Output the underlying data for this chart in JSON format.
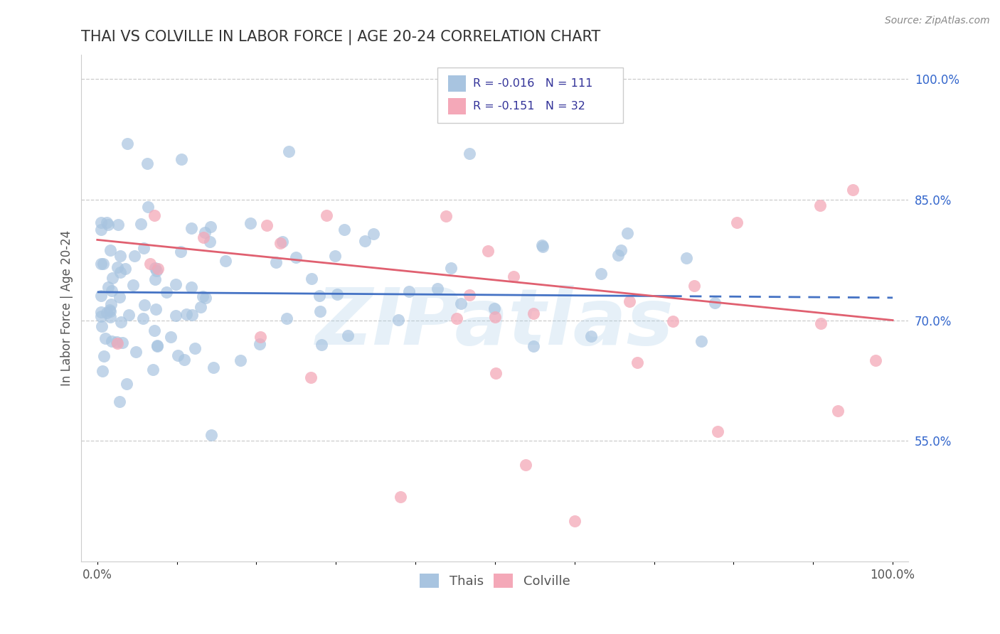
{
  "title": "THAI VS COLVILLE IN LABOR FORCE | AGE 20-24 CORRELATION CHART",
  "source_text": "Source: ZipAtlas.com",
  "ylabel": "In Labor Force | Age 20-24",
  "xlim": [
    -0.02,
    1.02
  ],
  "ylim": [
    0.4,
    1.03
  ],
  "yticks": [
    0.55,
    0.7,
    0.85,
    1.0
  ],
  "ytick_labels": [
    "55.0%",
    "70.0%",
    "85.0%",
    "100.0%"
  ],
  "blue_R": -0.016,
  "blue_N": 111,
  "pink_R": -0.151,
  "pink_N": 32,
  "blue_color": "#a8c4e0",
  "pink_color": "#f4a8b8",
  "blue_line_color": "#4472c4",
  "pink_line_color": "#e06070",
  "blue_line_start_y": 0.735,
  "blue_line_end_y": 0.728,
  "pink_line_start_y": 0.8,
  "pink_line_end_y": 0.7,
  "legend_labels": [
    "Thais",
    "Colville"
  ],
  "watermark": "ZIPatlas",
  "title_fontsize": 15,
  "tick_fontsize": 12,
  "ylabel_fontsize": 12,
  "source_fontsize": 10
}
